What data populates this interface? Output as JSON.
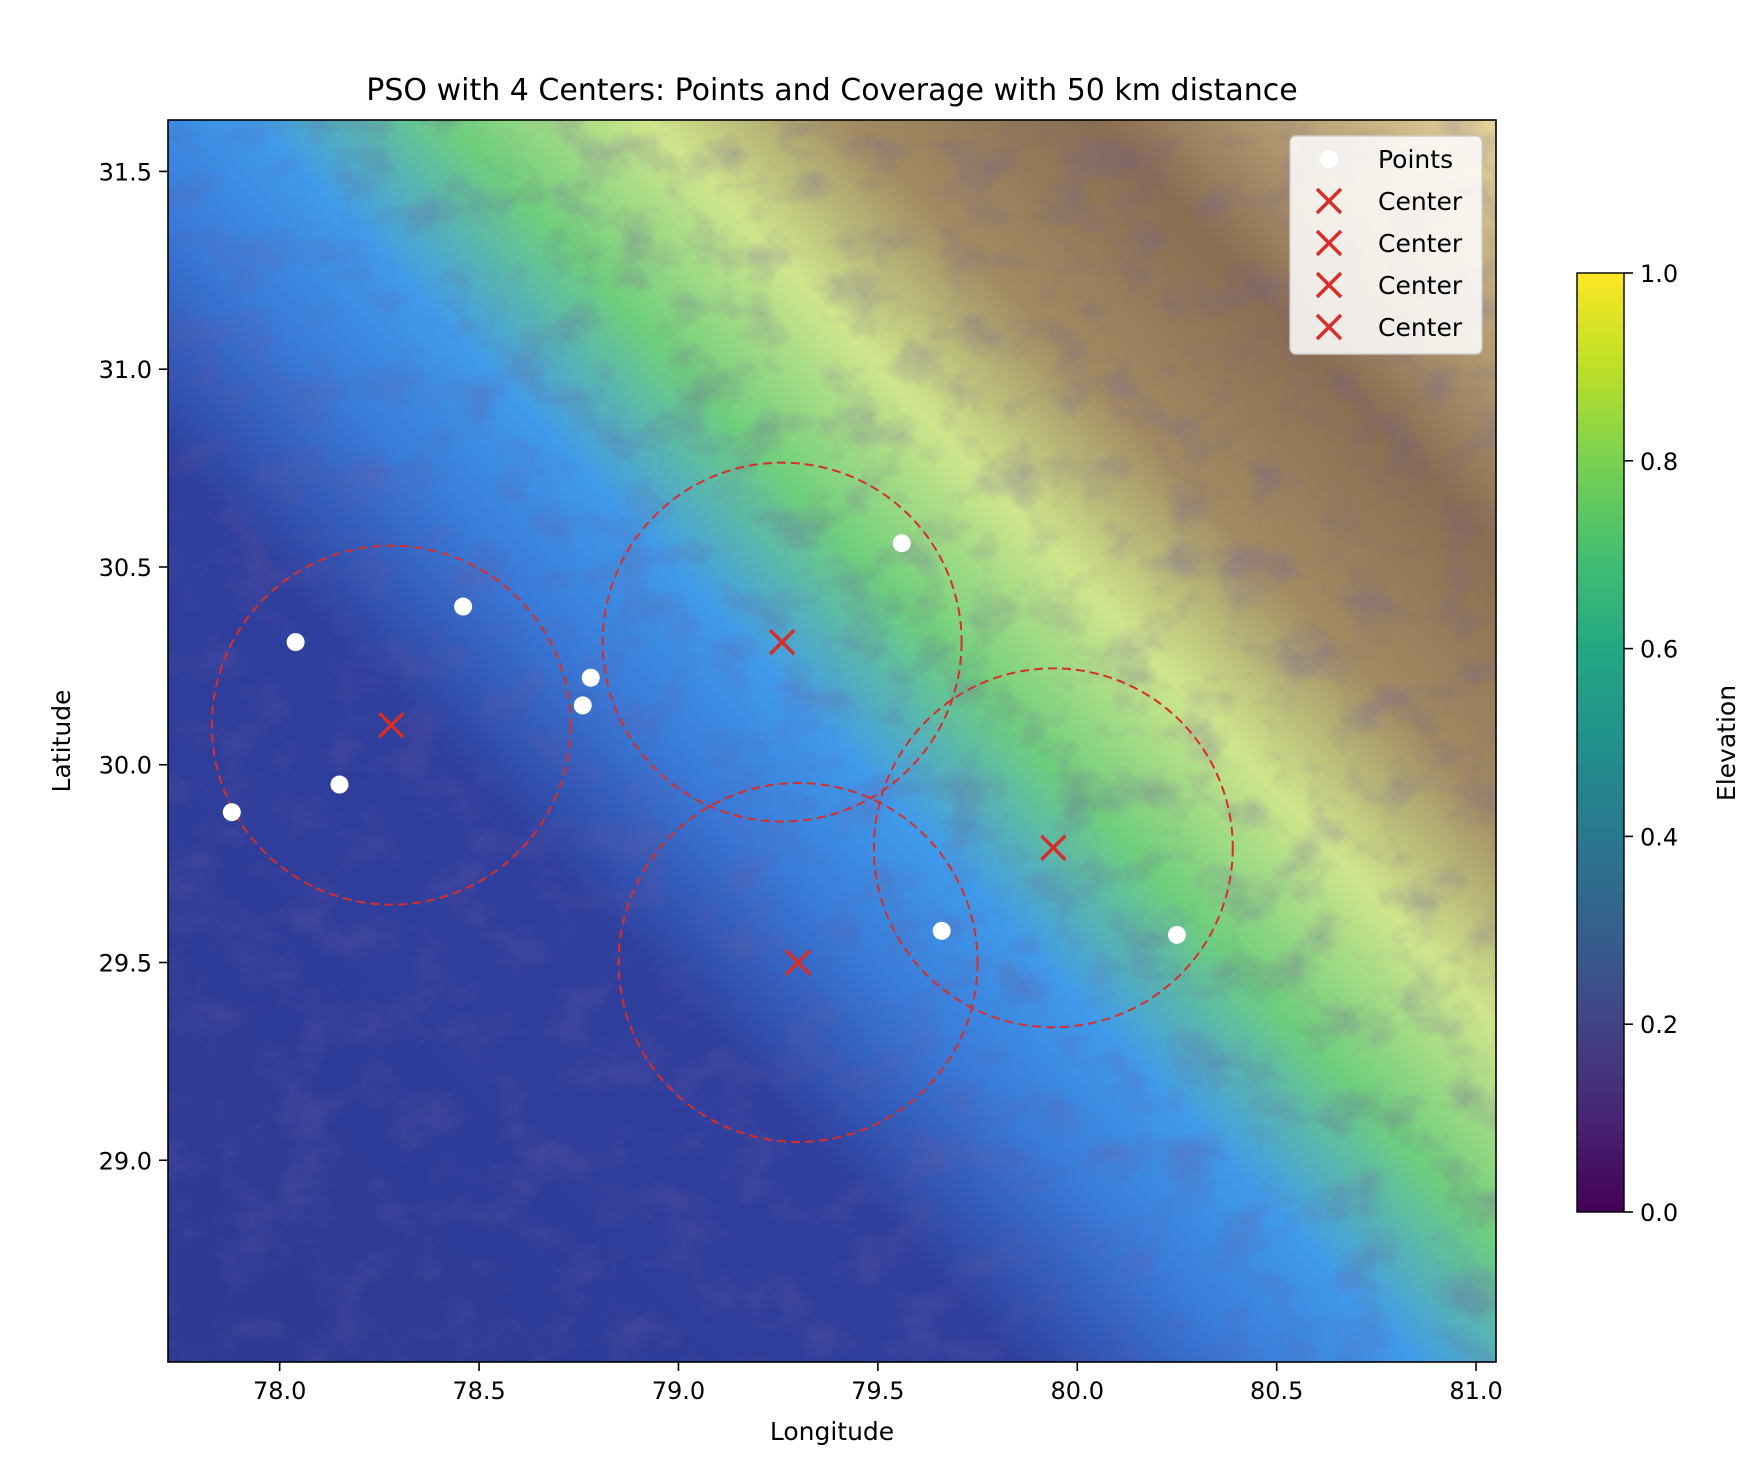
{
  "chart_data": {
    "type": "scatter",
    "title": "PSO with 4 Centers: Points and Coverage with 50 km distance",
    "xlabel": "Longitude",
    "ylabel": "Latitude",
    "xlim": [
      77.72,
      81.05
    ],
    "ylim": [
      28.49,
      31.63
    ],
    "xticks": [
      78.0,
      78.5,
      79.0,
      79.5,
      80.0,
      80.5,
      81.0
    ],
    "xtick_labels": [
      "78.0",
      "78.5",
      "79.0",
      "79.5",
      "80.0",
      "80.5",
      "81.0"
    ],
    "yticks": [
      29.0,
      29.5,
      30.0,
      30.5,
      31.0,
      31.5
    ],
    "ytick_labels": [
      "29.0",
      "29.5",
      "30.0",
      "30.5",
      "31.0",
      "31.5"
    ],
    "background": "terrain-colored elevation map",
    "colorbar": {
      "label": "Elevation",
      "range": [
        0.0,
        1.0
      ],
      "ticks": [
        0.0,
        0.2,
        0.4,
        0.6,
        0.8,
        1.0
      ],
      "tick_labels": [
        "0.0",
        "0.2",
        "0.4",
        "0.6",
        "0.8",
        "1.0"
      ],
      "colormap": "viridis"
    },
    "legend": {
      "placement": "upper-right",
      "entries": [
        "Points",
        "Center",
        "Center",
        "Center",
        "Center"
      ]
    },
    "points": [
      {
        "lon": 78.04,
        "lat": 30.31
      },
      {
        "lon": 78.46,
        "lat": 30.4
      },
      {
        "lon": 78.78,
        "lat": 30.22
      },
      {
        "lon": 78.76,
        "lat": 30.15
      },
      {
        "lon": 78.15,
        "lat": 29.95
      },
      {
        "lon": 77.88,
        "lat": 29.88
      },
      {
        "lon": 79.56,
        "lat": 30.56
      },
      {
        "lon": 79.66,
        "lat": 29.58
      },
      {
        "lon": 80.25,
        "lat": 29.57
      }
    ],
    "centers": [
      {
        "lon": 78.28,
        "lat": 30.1
      },
      {
        "lon": 79.26,
        "lat": 30.31
      },
      {
        "lon": 79.3,
        "lat": 29.5
      },
      {
        "lon": 79.94,
        "lat": 29.79
      }
    ],
    "coverage_radius_deg": 0.45,
    "coverage_radius_km": 50,
    "colors": {
      "points": "#ffffff",
      "centers": "#d62f2a",
      "circles": "#d62f2a"
    }
  }
}
